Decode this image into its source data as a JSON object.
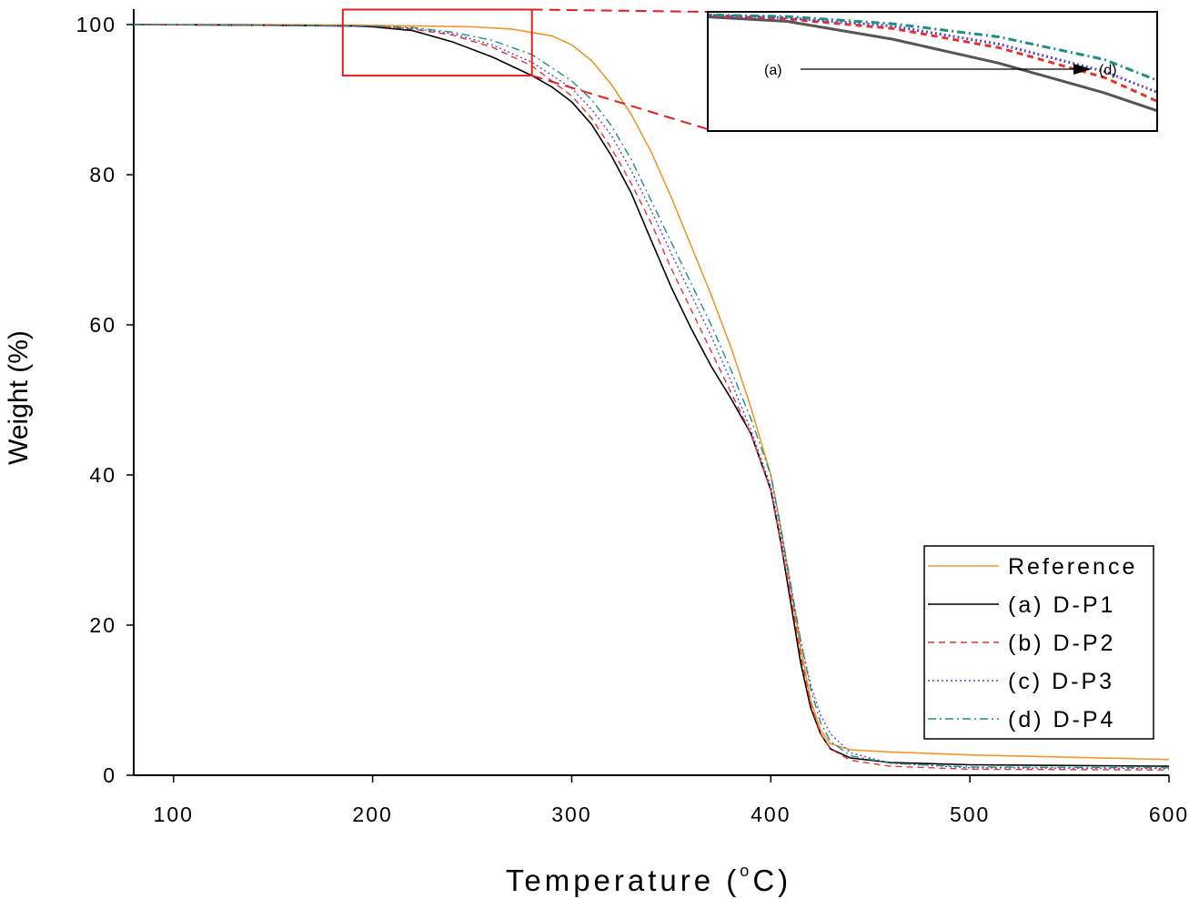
{
  "chart_data": {
    "type": "line",
    "title": "",
    "xlabel": "Temperature",
    "xlabel_unit_prefix": "(",
    "xlabel_unit_sup": "o",
    "xlabel_unit": "C)",
    "ylabel": "Weight (%)",
    "xlim": [
      80,
      600
    ],
    "ylim": [
      0,
      102
    ],
    "xticks": [
      100,
      200,
      300,
      400,
      500,
      600
    ],
    "yticks": [
      0,
      20,
      40,
      60,
      80,
      100
    ],
    "grid": false,
    "legend_placement": "bottom-right",
    "series": [
      {
        "name": "Reference",
        "color": "#f0962a",
        "dash": "solid",
        "points": [
          [
            80,
            100
          ],
          [
            150,
            100
          ],
          [
            200,
            99.9
          ],
          [
            250,
            99.7
          ],
          [
            270,
            99.4
          ],
          [
            290,
            98.5
          ],
          [
            300,
            97.3
          ],
          [
            310,
            95.2
          ],
          [
            320,
            92
          ],
          [
            330,
            88
          ],
          [
            340,
            83
          ],
          [
            350,
            77
          ],
          [
            360,
            70.5
          ],
          [
            370,
            64
          ],
          [
            380,
            57
          ],
          [
            390,
            49
          ],
          [
            400,
            40
          ],
          [
            405,
            33
          ],
          [
            410,
            25
          ],
          [
            415,
            17
          ],
          [
            420,
            10
          ],
          [
            425,
            6
          ],
          [
            430,
            4.2
          ],
          [
            440,
            3.4
          ],
          [
            460,
            3.1
          ],
          [
            500,
            2.7
          ],
          [
            550,
            2.4
          ],
          [
            600,
            2.1
          ]
        ]
      },
      {
        "name": "(a) D-P1",
        "color": "#000000",
        "dash": "solid",
        "points": [
          [
            80,
            100
          ],
          [
            150,
            99.9
          ],
          [
            190,
            99.8
          ],
          [
            200,
            99.7
          ],
          [
            220,
            99.2
          ],
          [
            240,
            97.7
          ],
          [
            260,
            95.7
          ],
          [
            280,
            93.2
          ],
          [
            290,
            91.7
          ],
          [
            300,
            89.7
          ],
          [
            310,
            86.7
          ],
          [
            320,
            82.5
          ],
          [
            330,
            77.5
          ],
          [
            340,
            71.2
          ],
          [
            350,
            65
          ],
          [
            360,
            59.5
          ],
          [
            370,
            54.5
          ],
          [
            380,
            50.2
          ],
          [
            390,
            45.5
          ],
          [
            400,
            38
          ],
          [
            405,
            31
          ],
          [
            410,
            23
          ],
          [
            415,
            15
          ],
          [
            420,
            9
          ],
          [
            425,
            5.5
          ],
          [
            430,
            3.5
          ],
          [
            440,
            2.3
          ],
          [
            460,
            1.7
          ],
          [
            500,
            1.4
          ],
          [
            600,
            1.2
          ]
        ]
      },
      {
        "name": "(b) D-P2",
        "color": "#e8322d",
        "dash": "dashed",
        "points": [
          [
            80,
            100
          ],
          [
            150,
            99.9
          ],
          [
            200,
            99.8
          ],
          [
            220,
            99.4
          ],
          [
            240,
            98.6
          ],
          [
            260,
            97
          ],
          [
            280,
            94.5
          ],
          [
            300,
            90.5
          ],
          [
            310,
            87.5
          ],
          [
            320,
            83.5
          ],
          [
            330,
            78.8
          ],
          [
            340,
            73.5
          ],
          [
            350,
            67.5
          ],
          [
            360,
            62
          ],
          [
            370,
            56.5
          ],
          [
            380,
            51
          ],
          [
            390,
            45.5
          ],
          [
            400,
            38
          ],
          [
            405,
            31
          ],
          [
            410,
            24
          ],
          [
            415,
            16
          ],
          [
            420,
            9.5
          ],
          [
            425,
            5.5
          ],
          [
            430,
            3.5
          ],
          [
            440,
            2
          ],
          [
            460,
            1.2
          ],
          [
            500,
            0.8
          ],
          [
            600,
            0.7
          ]
        ]
      },
      {
        "name": "(c) D-P3",
        "color": "#5a42c8",
        "dash": "dotted",
        "points": [
          [
            80,
            100
          ],
          [
            150,
            99.9
          ],
          [
            200,
            99.8
          ],
          [
            220,
            99.5
          ],
          [
            240,
            98.8
          ],
          [
            260,
            97.3
          ],
          [
            280,
            95
          ],
          [
            300,
            91.5
          ],
          [
            310,
            88.7
          ],
          [
            320,
            85.2
          ],
          [
            330,
            80.5
          ],
          [
            340,
            75.2
          ],
          [
            350,
            69.5
          ],
          [
            360,
            64
          ],
          [
            370,
            58.5
          ],
          [
            380,
            52.5
          ],
          [
            390,
            46
          ],
          [
            400,
            38.5
          ],
          [
            405,
            32
          ],
          [
            410,
            25
          ],
          [
            415,
            18
          ],
          [
            420,
            12
          ],
          [
            425,
            8
          ],
          [
            430,
            5.5
          ],
          [
            440,
            3
          ],
          [
            460,
            1.6
          ],
          [
            500,
            1
          ],
          [
            600,
            0.9
          ]
        ]
      },
      {
        "name": "(d) D-P4",
        "color": "#1f8f84",
        "dash": "dashdot",
        "points": [
          [
            80,
            100
          ],
          [
            150,
            99.9
          ],
          [
            200,
            99.8
          ],
          [
            220,
            99.6
          ],
          [
            240,
            99
          ],
          [
            260,
            97.9
          ],
          [
            280,
            96
          ],
          [
            300,
            92.5
          ],
          [
            310,
            90
          ],
          [
            320,
            86.5
          ],
          [
            330,
            82
          ],
          [
            340,
            76.5
          ],
          [
            350,
            71
          ],
          [
            360,
            65.5
          ],
          [
            370,
            60
          ],
          [
            380,
            54
          ],
          [
            390,
            47.5
          ],
          [
            400,
            40
          ],
          [
            405,
            33
          ],
          [
            410,
            25.5
          ],
          [
            415,
            18
          ],
          [
            420,
            11.5
          ],
          [
            425,
            7
          ],
          [
            430,
            4.5
          ],
          [
            440,
            2.6
          ],
          [
            460,
            1.6
          ],
          [
            500,
            1.1
          ],
          [
            600,
            1
          ]
        ]
      }
    ],
    "inset": {
      "annotation_start": "(a)",
      "annotation_end": "(d)",
      "zoom_region": {
        "x": [
          185,
          280
        ],
        "y": [
          93.2,
          102
        ]
      }
    }
  }
}
